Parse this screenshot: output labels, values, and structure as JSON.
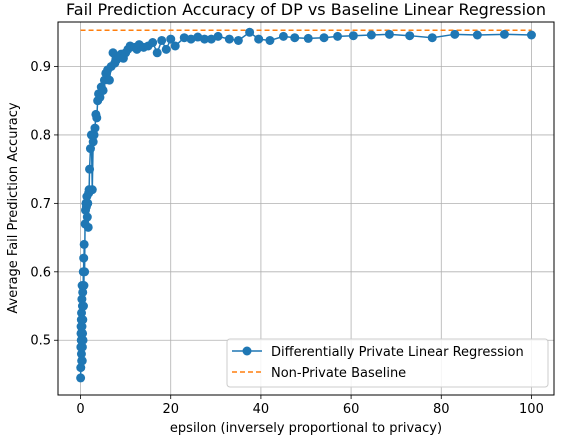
{
  "chart_data": {
    "type": "line",
    "title": "Fail Prediction Accuracy of DP vs Baseline Linear Regression",
    "xlabel": "epsilon (inversely proportional to privacy)",
    "ylabel": "Average Fail Prediction Accuracy",
    "xlim": [
      -5,
      105
    ],
    "ylim": [
      0.42,
      0.965
    ],
    "xticks": [
      0,
      20,
      40,
      60,
      80,
      100
    ],
    "xtick_labels": [
      "0",
      "20",
      "40",
      "60",
      "80",
      "100"
    ],
    "yticks": [
      0.5,
      0.6,
      0.7,
      0.8,
      0.9
    ],
    "ytick_labels": [
      "0.5",
      "0.6",
      "0.7",
      "0.8",
      "0.9"
    ],
    "grid": true,
    "legend_position": "lower-right",
    "series": [
      {
        "name": "Differentially Private Linear Regression",
        "style": "line-with-circle-markers",
        "color": "#1f77b4",
        "x": [
          0.02,
          0.05,
          0.08,
          0.1,
          0.12,
          0.15,
          0.18,
          0.2,
          0.22,
          0.25,
          0.28,
          0.3,
          0.32,
          0.35,
          0.38,
          0.4,
          0.42,
          0.45,
          0.48,
          0.5,
          0.55,
          0.6,
          0.65,
          0.7,
          0.75,
          0.8,
          0.9,
          1.0,
          1.1,
          1.2,
          1.3,
          1.4,
          1.5,
          1.6,
          1.7,
          1.8,
          1.9,
          2.0,
          2.2,
          2.4,
          2.6,
          2.8,
          3.0,
          3.2,
          3.4,
          3.6,
          3.8,
          4.0,
          4.3,
          4.6,
          5.0,
          5.3,
          5.6,
          6.0,
          6.4,
          6.8,
          7.2,
          7.6,
          8.0,
          8.5,
          9.0,
          9.5,
          10.0,
          10.5,
          11.0,
          12.0,
          12.5,
          13.0,
          14.0,
          15.0,
          16.0,
          17.0,
          18.0,
          19.0,
          20.0,
          21.0,
          23.0,
          24.5,
          26.0,
          27.5,
          29.0,
          30.5,
          33.0,
          35.0,
          37.5,
          39.5,
          42.0,
          45.0,
          47.5,
          50.5,
          54.0,
          57.0,
          60.5,
          64.5,
          68.5,
          73.0,
          78.0,
          83.0,
          88.0,
          94.0,
          100.0
        ],
        "y": [
          0.445,
          0.46,
          0.49,
          0.51,
          0.52,
          0.5,
          0.53,
          0.48,
          0.54,
          0.47,
          0.5,
          0.56,
          0.52,
          0.58,
          0.47,
          0.49,
          0.55,
          0.51,
          0.57,
          0.53,
          0.5,
          0.6,
          0.55,
          0.62,
          0.58,
          0.64,
          0.6,
          0.67,
          0.69,
          0.7,
          0.695,
          0.71,
          0.68,
          0.7,
          0.665,
          0.715,
          0.72,
          0.75,
          0.78,
          0.8,
          0.72,
          0.79,
          0.8,
          0.81,
          0.83,
          0.825,
          0.85,
          0.86,
          0.855,
          0.87,
          0.865,
          0.88,
          0.89,
          0.895,
          0.88,
          0.9,
          0.92,
          0.905,
          0.91,
          0.915,
          0.918,
          0.912,
          0.92,
          0.925,
          0.93,
          0.928,
          0.925,
          0.932,
          0.928,
          0.93,
          0.935,
          0.92,
          0.938,
          0.925,
          0.94,
          0.93,
          0.942,
          0.94,
          0.943,
          0.94,
          0.94,
          0.944,
          0.94,
          0.938,
          0.95,
          0.94,
          0.938,
          0.944,
          0.942,
          0.941,
          0.942,
          0.944,
          0.945,
          0.946,
          0.947,
          0.945,
          0.942,
          0.947,
          0.946,
          0.947,
          0.946
        ]
      },
      {
        "name": "Non-Private Baseline",
        "style": "dashed",
        "color": "#ff7f0e",
        "x": [
          0,
          100
        ],
        "y": [
          0.953,
          0.953
        ]
      }
    ]
  }
}
